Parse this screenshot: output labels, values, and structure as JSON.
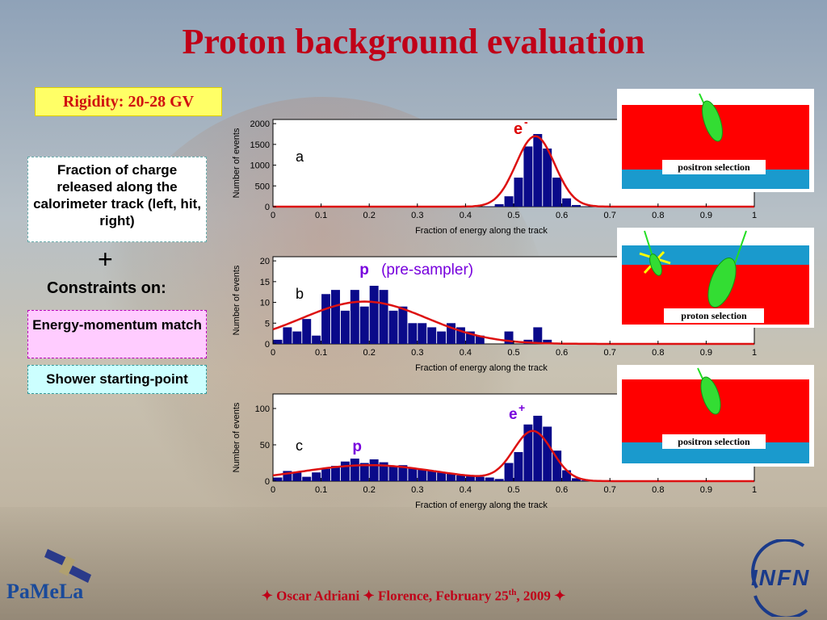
{
  "title": "Proton background evaluation",
  "rigidity_label": "Rigidity: 20-28 GV",
  "left_panel": {
    "box1": "Fraction of charge released along the calorimeter track (left, hit, right)",
    "plus": "+",
    "constraints": "Constraints on:",
    "box2": "Energy-momentum match",
    "box3": "Shower starting-point"
  },
  "insets": [
    {
      "label": "positron selection"
    },
    {
      "label": "proton  selection"
    },
    {
      "label": "positron selection"
    }
  ],
  "footer": {
    "prefix": "✦ Oscar Adriani ✦ Florence, February 25",
    "sup": "th",
    "suffix": ", 2009 ✦"
  },
  "logos": {
    "left": "PaMeLa",
    "right": "INFN"
  },
  "colors": {
    "title": "#c00018",
    "bars": "#0a0a8a",
    "fit": "#dd1111",
    "inset_red": "#ff0000",
    "inset_blue": "#1a9acd",
    "track": "#22dd22"
  },
  "chart_data": [
    {
      "type": "bar",
      "panel": "a",
      "annotation": "e",
      "annotation_sup": "-",
      "xlabel": "Fraction of energy along the track",
      "ylabel": "Number of events",
      "xlim": [
        0,
        1
      ],
      "ylim": [
        0,
        2100
      ],
      "xticks": [
        "0",
        "0.1",
        "0.2",
        "0.3",
        "0.4",
        "0.5",
        "0.6",
        "0.7",
        "0.8",
        "0.9",
        "1"
      ],
      "yticks": [
        0,
        500,
        1000,
        1500,
        2000
      ],
      "bin_centers": [
        0.45,
        0.47,
        0.49,
        0.51,
        0.53,
        0.55,
        0.57,
        0.59,
        0.61,
        0.63,
        0.65
      ],
      "values": [
        10,
        60,
        250,
        700,
        1450,
        1750,
        1400,
        700,
        200,
        40,
        5
      ],
      "fit": {
        "type": "gaussian",
        "peak": 1700,
        "mean": 0.545,
        "sigma": 0.04
      }
    },
    {
      "type": "bar",
      "panel": "b",
      "annotation": "p",
      "annotation_extra": "(pre-sampler)",
      "xlabel": "Fraction of energy along the track",
      "ylabel": "Number of events",
      "xlim": [
        0,
        1
      ],
      "ylim": [
        0,
        21
      ],
      "xticks": [
        "0",
        "0.1",
        "0.2",
        "0.3",
        "0.4",
        "0.5",
        "0.6",
        "0.7",
        "0.8",
        "0.9",
        "1"
      ],
      "yticks": [
        0,
        5,
        10,
        15,
        20
      ],
      "bin_centers": [
        0.01,
        0.03,
        0.05,
        0.07,
        0.09,
        0.11,
        0.13,
        0.15,
        0.17,
        0.19,
        0.21,
        0.23,
        0.25,
        0.27,
        0.29,
        0.31,
        0.33,
        0.35,
        0.37,
        0.39,
        0.41,
        0.43,
        0.45,
        0.47,
        0.49,
        0.51,
        0.53,
        0.55,
        0.57,
        0.59
      ],
      "values": [
        1,
        4,
        3,
        6,
        2,
        12,
        13,
        8,
        13,
        9,
        14,
        13,
        8,
        9,
        5,
        5,
        4,
        3,
        5,
        4,
        3,
        2,
        0,
        0,
        3,
        0,
        1,
        4,
        1,
        0
      ],
      "fit": {
        "type": "gaussian",
        "peak": 10.2,
        "mean": 0.19,
        "sigma": 0.13
      }
    },
    {
      "type": "bar",
      "panel": "c",
      "annotations": [
        {
          "text": "e",
          "sup": "+"
        },
        {
          "text": "p",
          "sup": ""
        }
      ],
      "xlabel": "Fraction of energy along the track",
      "ylabel": "Number of events",
      "xlim": [
        0,
        1
      ],
      "ylim": [
        0,
        120
      ],
      "xticks": [
        "0",
        "0.1",
        "0.2",
        "0.3",
        "0.4",
        "0.5",
        "0.6",
        "0.7",
        "0.8",
        "0.9",
        "1"
      ],
      "yticks": [
        0,
        50,
        100
      ],
      "bin_centers": [
        0.01,
        0.03,
        0.05,
        0.07,
        0.09,
        0.11,
        0.13,
        0.15,
        0.17,
        0.19,
        0.21,
        0.23,
        0.25,
        0.27,
        0.29,
        0.31,
        0.33,
        0.35,
        0.37,
        0.39,
        0.41,
        0.43,
        0.45,
        0.47,
        0.49,
        0.51,
        0.53,
        0.55,
        0.57,
        0.59,
        0.61,
        0.63,
        0.65
      ],
      "values": [
        5,
        14,
        12,
        6,
        12,
        17,
        21,
        27,
        31,
        25,
        30,
        26,
        21,
        22,
        18,
        16,
        15,
        12,
        10,
        8,
        7,
        6,
        5,
        3,
        25,
        40,
        78,
        90,
        75,
        42,
        15,
        4,
        1
      ],
      "fit": {
        "type": "two-gaussian",
        "components": [
          {
            "peak": 22,
            "mean": 0.2,
            "sigma": 0.14
          },
          {
            "peak": 68,
            "mean": 0.54,
            "sigma": 0.04
          }
        ]
      }
    }
  ]
}
